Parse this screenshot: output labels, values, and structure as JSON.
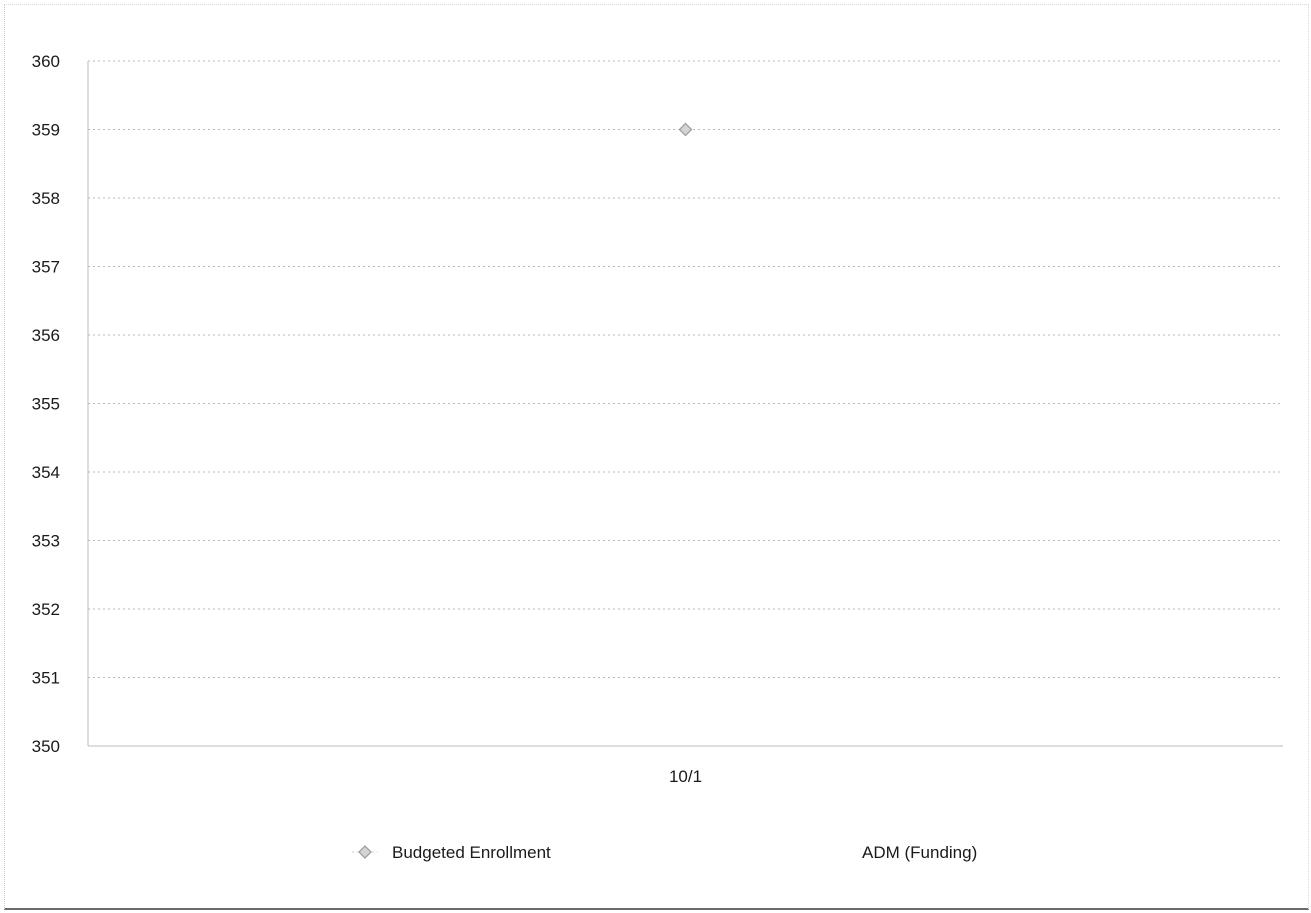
{
  "chart_data": {
    "type": "line",
    "title": "",
    "xlabel": "",
    "ylabel": "",
    "categories": [
      "10/1"
    ],
    "ylim": [
      350,
      360
    ],
    "y_ticks": [
      "350",
      "351",
      "352",
      "353",
      "354",
      "355",
      "356",
      "357",
      "358",
      "359",
      "360"
    ],
    "grid": true,
    "legend_position": "bottom",
    "series": [
      {
        "name": "Budgeted Enrollment",
        "values": [
          359
        ],
        "marker": "diamond",
        "color": "#9a9a9a"
      },
      {
        "name": "ADM (Funding)",
        "values": [
          null
        ],
        "marker": "none",
        "color": "#9a9a9a"
      }
    ]
  }
}
